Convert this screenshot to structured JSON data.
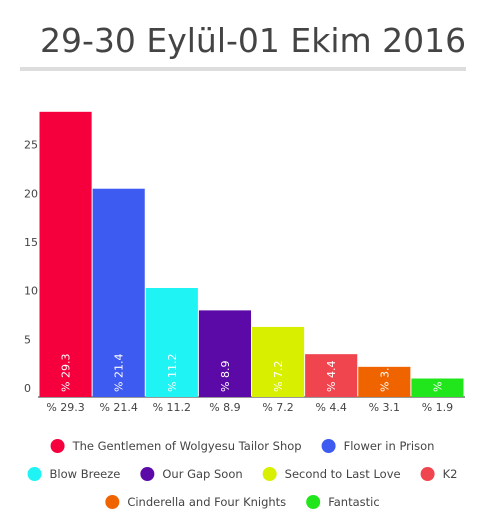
{
  "chart_data": {
    "type": "bar",
    "title": "29-30 Eylül-01 Ekim 2016",
    "categories": [
      "The Gentlemen of Wolgyesu Tailor Shop",
      "Flower in Prison",
      "Blow Breeze",
      "Our Gap Soon",
      "Second to Last Love",
      "K2",
      "Cinderella and Four Knights",
      "Fantastic"
    ],
    "values": [
      29.3,
      21.4,
      11.2,
      8.9,
      7.2,
      4.4,
      3.1,
      1.9
    ],
    "value_labels": [
      "% 29.3",
      "% 21.4",
      "% 11.2",
      "% 8.9",
      "% 7.2",
      "% 4.4",
      "% 3.1",
      "% 1.9"
    ],
    "colors": [
      "#f5003d",
      "#3d5af1",
      "#1ff3f3",
      "#5b0aa8",
      "#d8f000",
      "#f0444f",
      "#f06400",
      "#22e61c"
    ],
    "ylim": [
      0,
      30
    ],
    "yticks": [
      0,
      5,
      10,
      15,
      20,
      25
    ],
    "grid": false
  }
}
